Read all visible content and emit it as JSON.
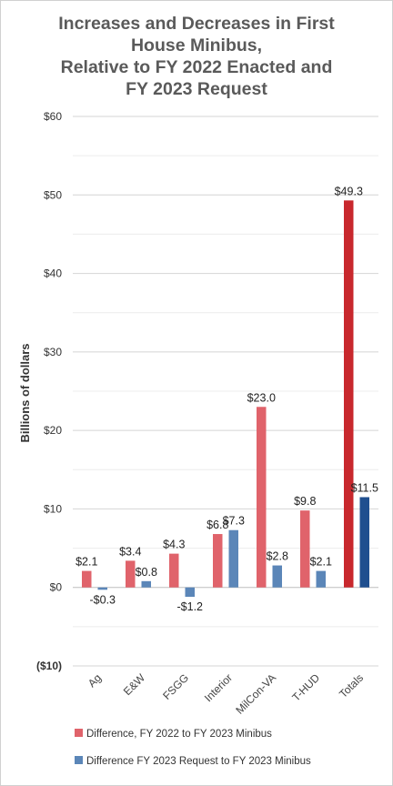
{
  "chart_data": {
    "type": "bar",
    "title_lines": [
      "Increases and Decreases in First",
      "House Minibus,",
      "Relative to FY 2022 Enacted and",
      "FY 2023 Request"
    ],
    "ylabel": "Billions of dollars",
    "ylim": [
      -10,
      60
    ],
    "yticks": [
      -10,
      0,
      10,
      20,
      30,
      40,
      50,
      60
    ],
    "ytick_labels": [
      "($10)",
      "$0",
      "$10",
      "$20",
      "$30",
      "$40",
      "$50",
      "$60"
    ],
    "negative_tick_color": "#e00000",
    "grid": true,
    "categories": [
      "Ag",
      "E&W",
      "FSGG",
      "Interior",
      "MilCon-VA",
      "T-HUD",
      "Totals"
    ],
    "series": [
      {
        "name": "Difference, FY 2022 to FY 2023 Minibus",
        "color": "#e0636b",
        "highlight_color": "#c8282d",
        "values": [
          2.1,
          3.4,
          4.3,
          6.8,
          23.0,
          9.8,
          49.3
        ],
        "labels": [
          "$2.1",
          "$3.4",
          "$4.3",
          "$6.8",
          "$23.0",
          "$9.8",
          "$49.3"
        ]
      },
      {
        "name": "Difference FY 2023 Request to FY 2023 Minibus",
        "color": "#5b86b8",
        "highlight_color": "#1f4f8f",
        "values": [
          -0.3,
          0.8,
          -1.2,
          7.3,
          2.8,
          2.1,
          11.5
        ],
        "labels": [
          "-$0.3",
          "$0.8",
          "-$1.2",
          "$7.3",
          "$2.8",
          "$2.1",
          "$11.5"
        ]
      }
    ],
    "legend_position": "bottom"
  }
}
